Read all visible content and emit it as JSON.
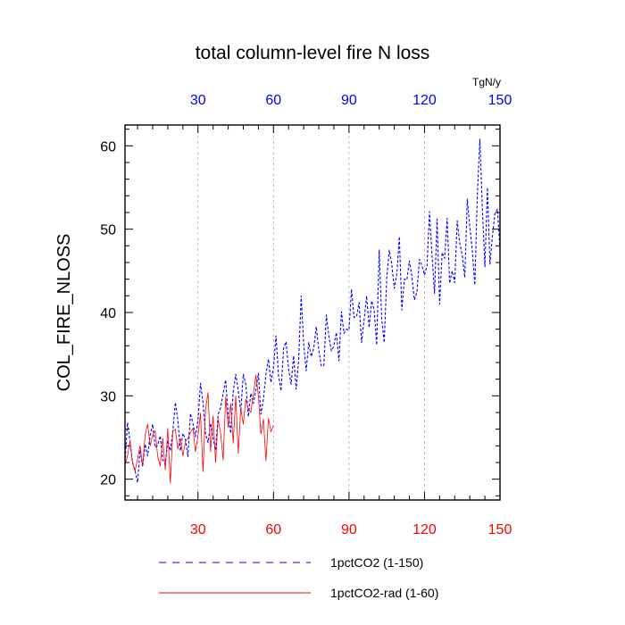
{
  "chart_data": {
    "type": "line",
    "title": "total column-level fire N loss",
    "ylabel": "COL_FIRE_NLOSS",
    "units": "TgN/y",
    "xlim": [
      1,
      150
    ],
    "ylim": [
      17.5,
      62.5
    ],
    "x_ticks": [
      30,
      60,
      90,
      120,
      150
    ],
    "y_ticks": [
      20,
      30,
      40,
      50,
      60
    ],
    "top_tick_color": "#0000ff",
    "bottom_tick_color": "#ff0000",
    "grid": "vertical-dashed",
    "legend_placement": "bottom",
    "series": [
      {
        "name": "1pctCO2 (1-150)",
        "color": "#0000ff",
        "dash": "dashed",
        "x_start": 1,
        "values": [
          22.0,
          26.8,
          24.5,
          22.0,
          21.0,
          19.6,
          23.5,
          21.5,
          24.2,
          22.8,
          25.3,
          26.6,
          23.8,
          24.1,
          25.2,
          22.3,
          21.8,
          24.6,
          23.4,
          25.8,
          29.2,
          27.1,
          23.4,
          25.5,
          24.8,
          22.7,
          27.9,
          26.7,
          25.1,
          27.1,
          31.5,
          29.2,
          25.4,
          24.4,
          26.7,
          24.9,
          23.5,
          27.8,
          28.6,
          30.3,
          31.9,
          27.8,
          25.5,
          30.5,
          32.6,
          30.6,
          28.1,
          32.6,
          31.4,
          27.5,
          30.3,
          29.1,
          30.7,
          32.7,
          27.8,
          29.6,
          32.6,
          34.4,
          31.6,
          33.4,
          37.2,
          32.4,
          30.6,
          35.7,
          36.5,
          33.2,
          31.4,
          34.8,
          30.8,
          34.3,
          42.0,
          36.2,
          33.0,
          36.4,
          34.7,
          35.7,
          38.3,
          35.5,
          33.6,
          33.6,
          39.7,
          37.2,
          35.4,
          36.0,
          37.6,
          34.2,
          40.1,
          37.5,
          38.0,
          37.9,
          42.8,
          39.4,
          39.5,
          41.2,
          36.4,
          39.1,
          42.0,
          38.2,
          41.4,
          40.3,
          36.1,
          47.5,
          39.2,
          36.4,
          44.2,
          47.5,
          45.8,
          42.9,
          44.6,
          49.1,
          40.3,
          44.0,
          43.9,
          46.2,
          44.3,
          41.5,
          42.5,
          46.4,
          45.6,
          44.5,
          45.6,
          52.1,
          46.8,
          42.3,
          51.2,
          41.0,
          47.2,
          46.5,
          51.3,
          43.5,
          45.0,
          43.6,
          51.0,
          48.3,
          46.9,
          44.2,
          53.6,
          50.4,
          47.4,
          43.3,
          54.1,
          60.8,
          52.4,
          45.5,
          55.0,
          45.8,
          49.2,
          51.9,
          52.4,
          47.6
        ]
      },
      {
        "name": "1pctCO2-rad (1-60)",
        "color": "#ff0000",
        "dash": "solid",
        "x_start": 1,
        "values": [
          21.7,
          22.8,
          24.6,
          21.9,
          21.0,
          22.4,
          24.0,
          21.6,
          25.3,
          26.6,
          24.0,
          25.3,
          25.8,
          22.7,
          21.6,
          24.9,
          21.1,
          26.1,
          19.5,
          25.8,
          26.0,
          23.6,
          24.9,
          22.8,
          24.5,
          24.9,
          25.6,
          26.1,
          23.3,
          25.2,
          27.9,
          20.9,
          28.4,
          30.4,
          23.3,
          27.6,
          22.0,
          27.2,
          25.5,
          22.3,
          29.9,
          26.2,
          29.1,
          24.3,
          30.0,
          23.1,
          28.5,
          26.6,
          29.6,
          28.4,
          28.0,
          30.2,
          32.5,
          30.0,
          25.4,
          27.2,
          22.2,
          27.3,
          25.7,
          26.4
        ]
      }
    ]
  }
}
